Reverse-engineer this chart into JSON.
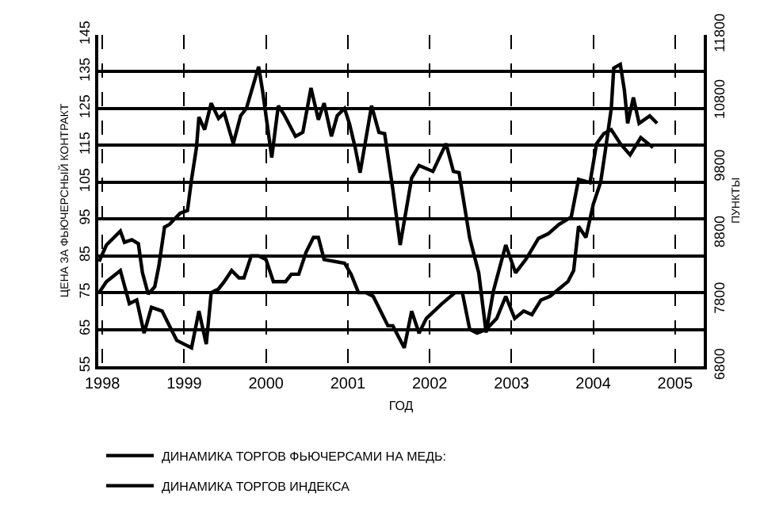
{
  "chart_data": {
    "type": "line",
    "xlabel": "ГОД",
    "ylabel": "ЦЕНА ЗА ФЬЮЧЕРСНЫЙ КОНТРАКТ",
    "y2label": "ПУНКТЫ",
    "xlim": [
      1997.95,
      2005.35
    ],
    "xticks": [
      1998,
      1999,
      2000,
      2001,
      2002,
      2003,
      2004,
      2005
    ],
    "ylim": [
      55,
      145
    ],
    "yticks": [
      55,
      65,
      75,
      85,
      95,
      105,
      115,
      125,
      135,
      145
    ],
    "y2lim": [
      6800,
      11800
    ],
    "y2ticks": [
      6800,
      7800,
      8800,
      9800,
      10800,
      11800
    ],
    "grid": true,
    "legend": "bottom",
    "line_style": "solid",
    "marker": "none",
    "series": [
      {
        "name": "ДИНАМИКА ТОРГОВ ФЬЮЧЕРСАМИ НА МЕДЬ:",
        "color": "#000000",
        "x": [
          1997.96,
          1998.05,
          1998.22,
          1998.33,
          1998.42,
          1998.51,
          1998.6,
          1998.73,
          1998.82,
          1998.91,
          1999.0,
          1999.09,
          1999.18,
          1999.27,
          1999.33,
          1999.42,
          1999.49,
          1999.58,
          1999.67,
          1999.73,
          1999.82,
          1999.91,
          2000.0,
          2000.09,
          2000.18,
          2000.24,
          2000.31,
          2000.4,
          2000.49,
          2000.58,
          2000.64,
          2000.71,
          2000.96,
          2001.04,
          2001.13,
          2001.22,
          2001.31,
          2001.49,
          2001.55,
          2001.69,
          2001.78,
          2001.87,
          2001.96,
          2002.15,
          2002.31,
          2002.4,
          2002.49,
          2002.58,
          2002.69,
          2002.82,
          2002.93,
          2003.04,
          2003.15,
          2003.25,
          2003.36,
          2003.47,
          2003.58,
          2003.69,
          2003.76,
          2003.82,
          2003.91,
          2004.0,
          2004.09,
          2004.15,
          2004.22,
          2004.25,
          2004.33,
          2004.38,
          2004.42,
          2004.49,
          2004.56,
          2004.69,
          2004.78
        ],
        "values": [
          75,
          78,
          81,
          72,
          73,
          64,
          71,
          70,
          66,
          62,
          61,
          60,
          70,
          61,
          75,
          76,
          78,
          81,
          79,
          79,
          85,
          85,
          84,
          78,
          78,
          78,
          80,
          80,
          86,
          90,
          90,
          84,
          83,
          80,
          75,
          75,
          74,
          66,
          66,
          60,
          70,
          64,
          68,
          72,
          75,
          75,
          65,
          64,
          65,
          68,
          74,
          68,
          70,
          69,
          73,
          74,
          76,
          78,
          81,
          93,
          90,
          99,
          105,
          114,
          125,
          136,
          137,
          130,
          121,
          128,
          121,
          123,
          121
        ]
      },
      {
        "name": "ДИНАМИКА ТОРГОВ ИНДЕКСА",
        "color": "#000000",
        "axis": "y2",
        "x": [
          1997.96,
          1998.05,
          1998.22,
          1998.27,
          1998.36,
          1998.44,
          1998.49,
          1998.56,
          1998.64,
          1998.69,
          1998.76,
          1998.82,
          1998.95,
          1999.04,
          1999.09,
          1999.15,
          1999.18,
          1999.25,
          1999.33,
          1999.42,
          1999.49,
          1999.6,
          1999.69,
          1999.76,
          1999.91,
          1999.96,
          2000.07,
          2000.15,
          2000.22,
          2000.36,
          2000.45,
          2000.55,
          2000.64,
          2000.71,
          2000.8,
          2000.87,
          2000.96,
          2001.02,
          2001.09,
          2001.15,
          2001.29,
          2001.38,
          2001.45,
          2001.55,
          2001.64,
          2001.78,
          2001.87,
          2002.04,
          2002.2,
          2002.29,
          2002.36,
          2002.49,
          2002.6,
          2002.69,
          2002.78,
          2002.93,
          2003.05,
          2003.18,
          2003.33,
          2003.45,
          2003.58,
          2003.73,
          2003.82,
          2003.96,
          2004.04,
          2004.13,
          2004.22,
          2004.33,
          2004.45,
          2004.58,
          2004.73
        ],
        "values": [
          8380,
          8630,
          8840,
          8670,
          8710,
          8650,
          8210,
          7890,
          8000,
          8310,
          8900,
          8940,
          9110,
          9150,
          9620,
          10100,
          10560,
          10370,
          10770,
          10540,
          10620,
          10160,
          10580,
          10690,
          11320,
          10940,
          9950,
          10730,
          10600,
          10270,
          10330,
          11000,
          10520,
          10770,
          10270,
          10580,
          10690,
          10460,
          10100,
          9720,
          10730,
          10330,
          10310,
          9470,
          8630,
          9640,
          9830,
          9740,
          10160,
          9740,
          9720,
          8730,
          8210,
          7310,
          7940,
          8630,
          8210,
          8420,
          8730,
          8800,
          8940,
          9050,
          9620,
          9570,
          10160,
          10310,
          10370,
          10160,
          9990,
          10250,
          10100
        ]
      }
    ]
  }
}
